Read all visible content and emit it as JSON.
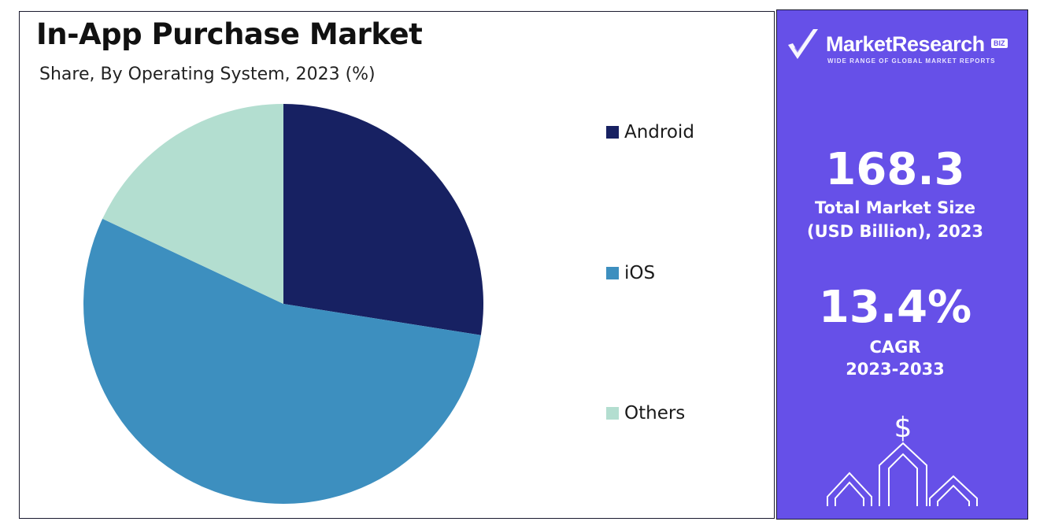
{
  "title": "In-App Purchase Market",
  "subtitle": "Share, By Operating System, 2023 (%)",
  "chart_data": {
    "type": "pie",
    "title": "In-App Purchase Market",
    "subtitle": "Share, By Operating System, 2023 (%)",
    "categories": [
      "Android",
      "iOS",
      "Others"
    ],
    "values": [
      27.5,
      54.5,
      18.0
    ],
    "colors": [
      "#172162",
      "#3d8fbf",
      "#b3ded0"
    ],
    "start_angle_deg": 0,
    "direction": "clockwise",
    "legend_position": "right"
  },
  "panel": {
    "brand_name": "MarketResearch",
    "brand_badge": "BIZ",
    "brand_tagline": "WIDE RANGE OF GLOBAL MARKET REPORTS",
    "market_size_value": "168.3",
    "market_size_label_line1": "Total Market Size",
    "market_size_label_line2": "(USD Billion), 2023",
    "cagr_value": "13.4%",
    "cagr_label_line1": "CAGR",
    "cagr_label_line2": "2023-2033",
    "dollar_symbol": "$",
    "background_color": "#6650e8"
  }
}
